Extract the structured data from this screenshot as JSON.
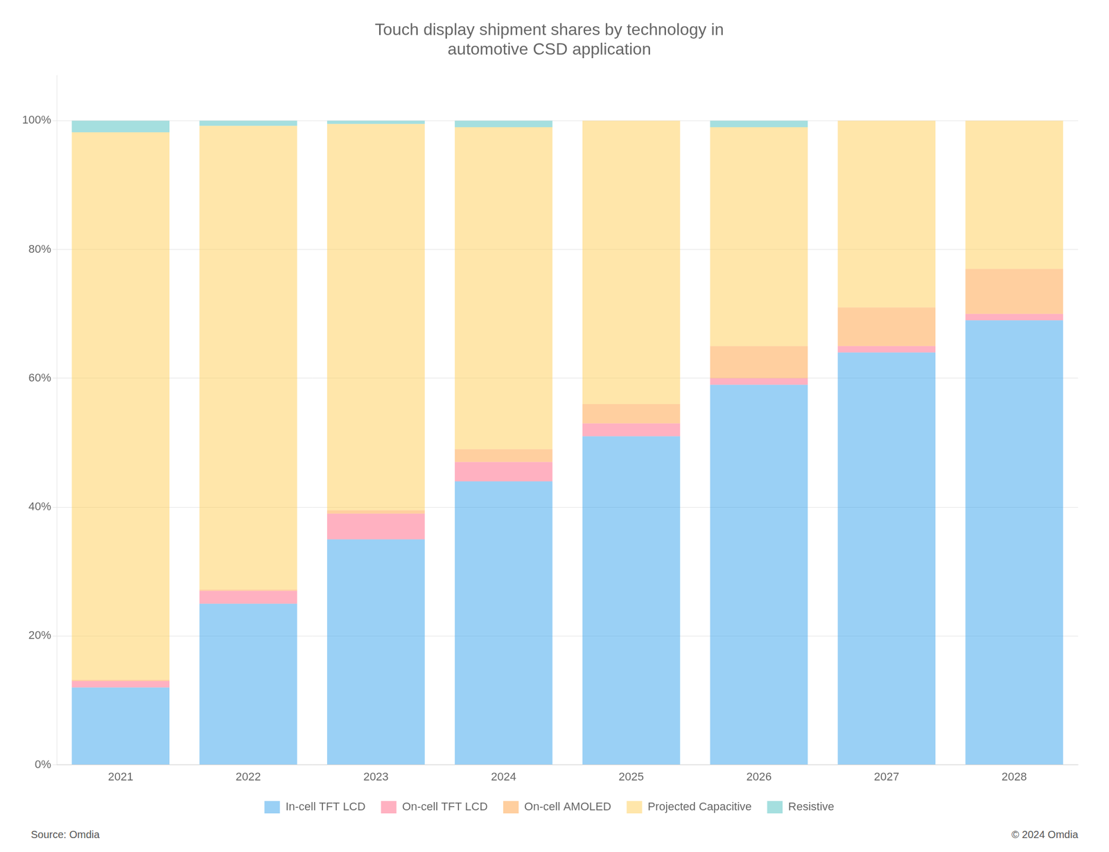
{
  "chart_data": {
    "type": "bar",
    "title": "Touch display shipment shares by technology in\nautomotive CSD application",
    "categories": [
      "2021",
      "2022",
      "2023",
      "2024",
      "2025",
      "2026",
      "2027",
      "2028"
    ],
    "series": [
      {
        "name": "In-cell TFT LCD",
        "values": [
          12,
          25,
          35,
          44,
          51,
          59,
          64,
          69
        ]
      },
      {
        "name": "On-cell TFT LCD",
        "values": [
          1,
          2,
          4,
          3,
          2,
          1,
          1,
          1
        ]
      },
      {
        "name": "On-cell AMOLED",
        "values": [
          0.2,
          0.2,
          0.5,
          2,
          3,
          5,
          6,
          7
        ]
      },
      {
        "name": "Projected Capacitive",
        "values": [
          85,
          72,
          60,
          50,
          44,
          34,
          29,
          23
        ]
      },
      {
        "name": "Resistive",
        "values": [
          1.8,
          0.8,
          0.5,
          1,
          0,
          1,
          0,
          0
        ]
      }
    ],
    "stacked": true,
    "ylim": [
      0,
      107
    ],
    "yticks": [
      {
        "value": 0,
        "label": "0%"
      },
      {
        "value": 20,
        "label": "20%"
      },
      {
        "value": 40,
        "label": "40%"
      },
      {
        "value": 60,
        "label": "60%"
      },
      {
        "value": 80,
        "label": "80%"
      },
      {
        "value": 100,
        "label": "100%"
      }
    ],
    "grid": true,
    "legend": "bottom",
    "annotations": [
      "Source: Omdia",
      "© 2024 Omdia"
    ]
  }
}
